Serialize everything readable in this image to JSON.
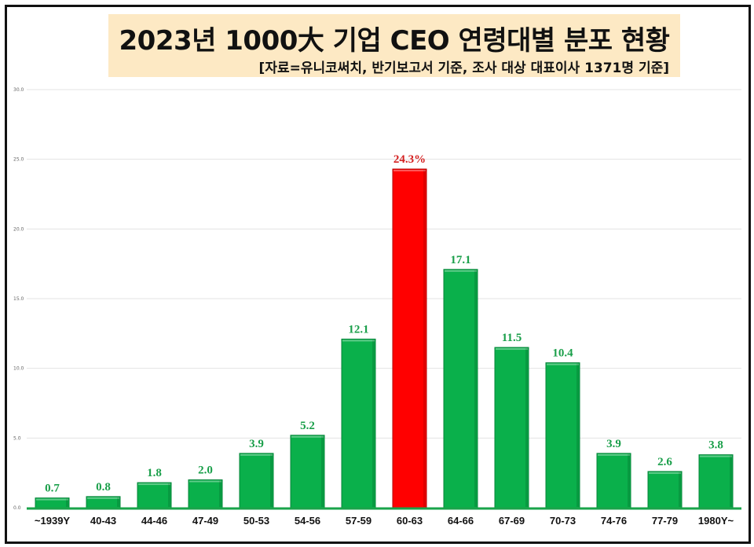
{
  "title": "2023년 1000大 기업 CEO 연령대별 분포 현황",
  "subtitle": "[자료=유니코써치, 반기보고서 기준, 조사 대상 대표이사 1371명 기준]",
  "colors": {
    "bar": "#0ab04b",
    "highlight_bar": "#ff0000",
    "label": "#1a9f4a",
    "highlight_label": "#d42020",
    "title_bg": "#fde9c4",
    "baseline": "#19a34a"
  },
  "chart_data": {
    "type": "bar",
    "title": "2023년 1000大 기업 CEO 연령대별 분포 현황",
    "subtitle": "[자료=유니코써치, 반기보고서 기준, 조사 대상 대표이사 1371명 기준]",
    "categories": [
      "~1939Y",
      "40-43",
      "44-46",
      "47-49",
      "50-53",
      "54-56",
      "57-59",
      "60-63",
      "64-66",
      "67-69",
      "70-73",
      "74-76",
      "77-79",
      "1980Y~"
    ],
    "values": [
      0.7,
      0.8,
      1.8,
      2.0,
      3.9,
      5.2,
      12.1,
      24.3,
      17.1,
      11.5,
      10.4,
      3.9,
      2.6,
      3.8
    ],
    "value_labels": [
      "0.7",
      "0.8",
      "1.8",
      "2.0",
      "3.9",
      "5.2",
      "12.1",
      "24.3%",
      "17.1",
      "11.5",
      "10.4",
      "3.9",
      "2.6",
      "3.8"
    ],
    "highlight_index": 7,
    "ylim": [
      0,
      30
    ],
    "yticks": [
      "0.0",
      "5.0",
      "10.0",
      "15.0",
      "20.0",
      "25.0",
      "30.0"
    ],
    "xlabel": "",
    "ylabel": "",
    "grid": true,
    "legend": "none"
  }
}
